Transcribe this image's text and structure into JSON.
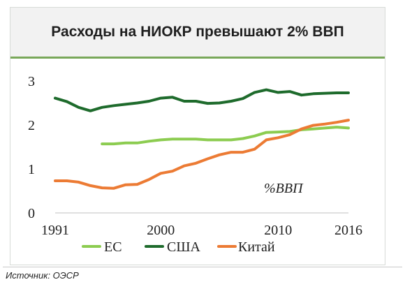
{
  "title": "Расходы на НИОКР превышают 2% ВВП",
  "source": "Источник: ОЭСР",
  "chart_data": {
    "type": "line",
    "title": "Расходы на НИОКР превышают 2% ВВП",
    "annotation": "%ВВП",
    "xlim": [
      1991,
      2016
    ],
    "ylim": [
      0,
      3
    ],
    "x_ticks": [
      "1991",
      "2000",
      "2010",
      "2016"
    ],
    "y_ticks": [
      "0",
      "1",
      "2",
      "3"
    ],
    "grid": false,
    "legend_position": "bottom",
    "series": [
      {
        "name": "ЕС",
        "color": "#8ccc50",
        "x": [
          1995,
          1996,
          1997,
          1998,
          1999,
          2000,
          2001,
          2002,
          2003,
          2004,
          2005,
          2006,
          2007,
          2008,
          2009,
          2010,
          2011,
          2012,
          2013,
          2014,
          2015,
          2016
        ],
        "y": [
          1.57,
          1.57,
          1.59,
          1.59,
          1.63,
          1.66,
          1.68,
          1.68,
          1.68,
          1.66,
          1.66,
          1.66,
          1.69,
          1.75,
          1.83,
          1.84,
          1.85,
          1.89,
          1.91,
          1.93,
          1.95,
          1.93
        ]
      },
      {
        "name": "США",
        "color": "#1e6b2c",
        "x": [
          1991,
          1992,
          1993,
          1994,
          1995,
          1996,
          1997,
          1998,
          1999,
          2000,
          2001,
          2002,
          2003,
          2004,
          2005,
          2006,
          2007,
          2008,
          2009,
          2010,
          2011,
          2012,
          2013,
          2014,
          2015,
          2016
        ],
        "y": [
          2.61,
          2.53,
          2.4,
          2.32,
          2.4,
          2.44,
          2.47,
          2.5,
          2.54,
          2.61,
          2.63,
          2.54,
          2.54,
          2.49,
          2.5,
          2.54,
          2.6,
          2.74,
          2.8,
          2.74,
          2.76,
          2.68,
          2.71,
          2.72,
          2.73,
          2.73
        ]
      },
      {
        "name": "Китай",
        "color": "#ec7b34",
        "x": [
          1991,
          1992,
          1993,
          1994,
          1995,
          1996,
          1997,
          1998,
          1999,
          2000,
          2001,
          2002,
          2003,
          2004,
          2005,
          2006,
          2007,
          2008,
          2009,
          2010,
          2011,
          2012,
          2013,
          2014,
          2015,
          2016
        ],
        "y": [
          0.73,
          0.73,
          0.7,
          0.62,
          0.57,
          0.56,
          0.64,
          0.65,
          0.76,
          0.9,
          0.95,
          1.07,
          1.13,
          1.23,
          1.32,
          1.38,
          1.38,
          1.45,
          1.66,
          1.71,
          1.78,
          1.91,
          1.99,
          2.02,
          2.06,
          2.11
        ]
      }
    ]
  }
}
